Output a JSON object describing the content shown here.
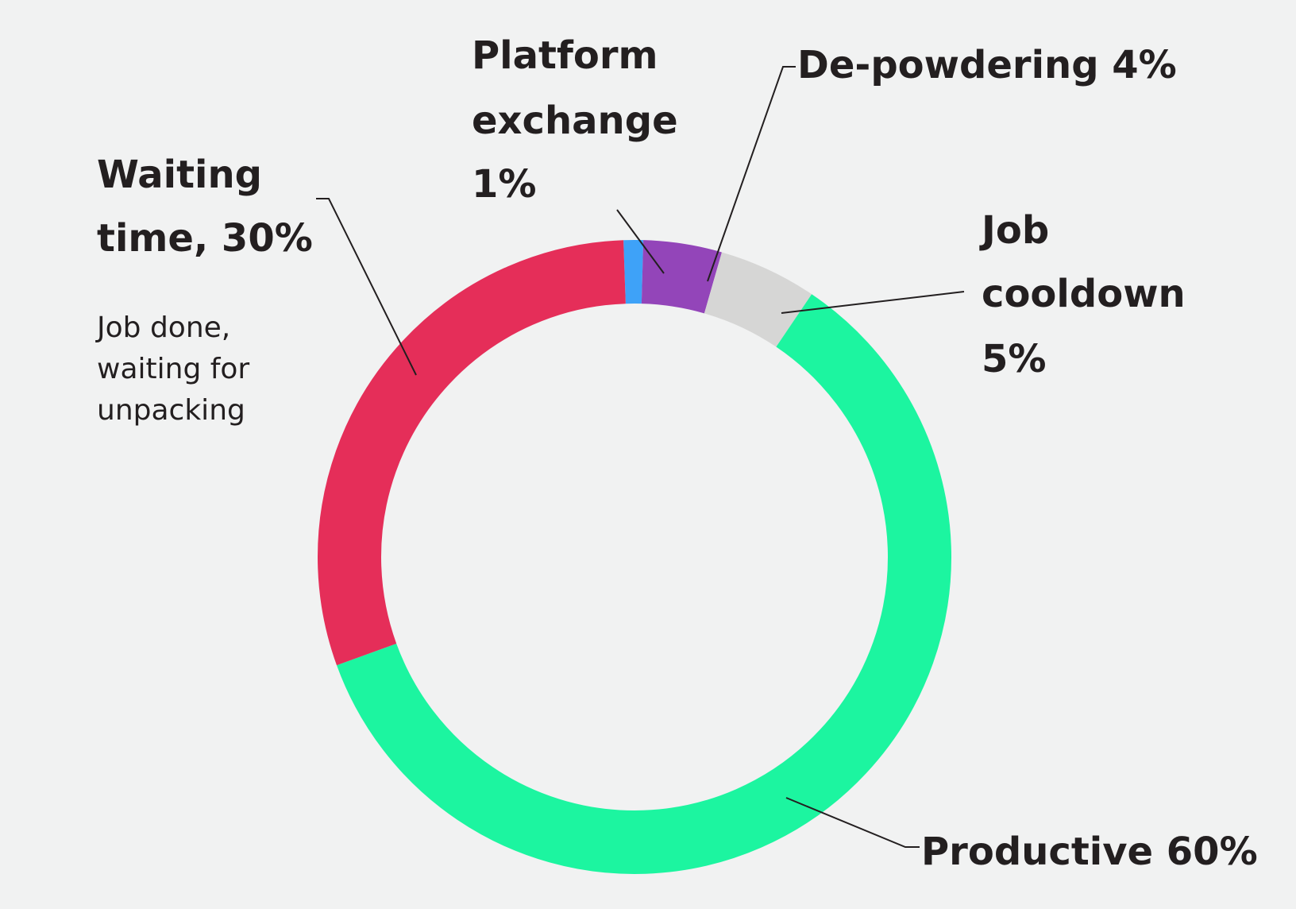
{
  "chart_data": {
    "type": "pie",
    "style": "donut",
    "title": "",
    "slices": [
      {
        "name": "Platform exchange",
        "value": 1,
        "color": "#3ea2f8",
        "label_lines": [
          "Platform",
          "exchange",
          "1%"
        ]
      },
      {
        "name": "De-powdering",
        "value": 4,
        "color": "#9345b9",
        "label_lines": [
          "De-powdering 4%"
        ]
      },
      {
        "name": "Job cooldown",
        "value": 5,
        "color": "#d6d6d5",
        "label_lines": [
          "Job",
          "cooldown",
          "5%"
        ]
      },
      {
        "name": "Productive",
        "value": 60,
        "color": "#1cf5a0",
        "label_lines": [
          "Productive 60%"
        ]
      },
      {
        "name": "Waiting time",
        "value": 30,
        "color": "#e52e59",
        "label_lines": [
          "Waiting",
          "time, 30%"
        ],
        "note_lines": [
          "Job done,",
          "waiting for",
          "unpacking"
        ]
      }
    ]
  }
}
